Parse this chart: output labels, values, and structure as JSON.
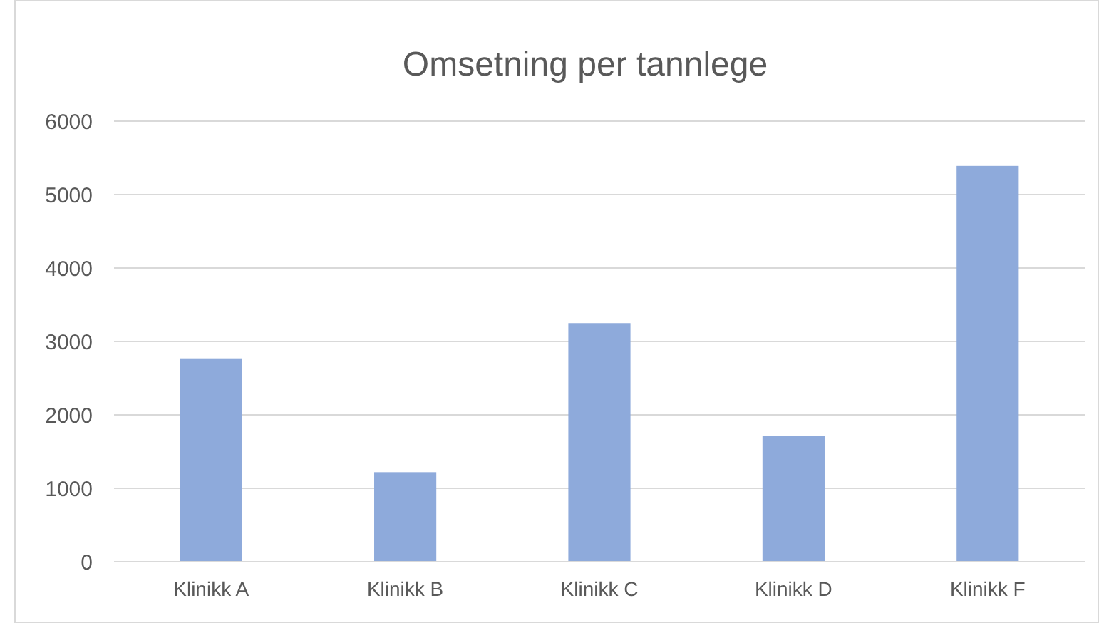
{
  "chart_data": {
    "type": "bar",
    "title": "Omsetning per tannlege",
    "categories": [
      "Klinikk A",
      "Klinikk B",
      "Klinikk C",
      "Klinikk D",
      "Klinikk F"
    ],
    "values": [
      2770,
      1220,
      3250,
      1710,
      5390
    ],
    "color": "#8eaadb",
    "ylim": [
      0,
      6000
    ],
    "yticks": [
      0,
      1000,
      2000,
      3000,
      4000,
      5000,
      6000
    ],
    "grid": "y"
  }
}
